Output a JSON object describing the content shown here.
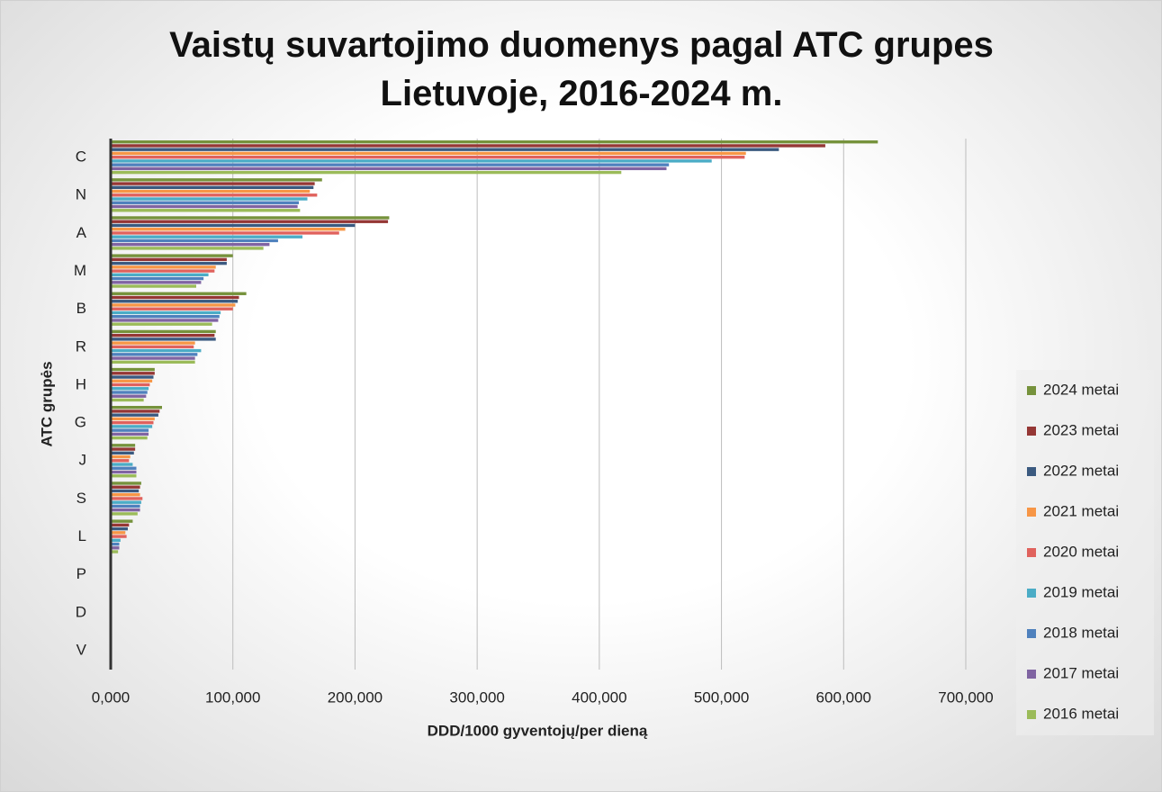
{
  "chart_data": {
    "type": "hbar",
    "title": "Vaistų suvartojimo duomenys pagal ATC grupes Lietuvoje, 2016-2024 m.",
    "x_label": "DDD/1000 gyventojų/per dieną",
    "y_label": "ATC grupės",
    "categories": [
      "C",
      "N",
      "A",
      "M",
      "B",
      "R",
      "H",
      "G",
      "J",
      "S",
      "L",
      "P",
      "D",
      "V"
    ],
    "series": [
      {
        "name": "2024 metai",
        "color": "#76923c",
        "values": [
          628000,
          173000,
          228000,
          100000,
          111000,
          86000,
          36000,
          42000,
          20000,
          25000,
          18000,
          0,
          0,
          0
        ]
      },
      {
        "name": "2023 metai",
        "color": "#953735",
        "values": [
          585000,
          167000,
          227000,
          95000,
          105000,
          85000,
          36000,
          40000,
          20000,
          24000,
          15000,
          0,
          0,
          0
        ]
      },
      {
        "name": "2022 metai",
        "color": "#3b5a80",
        "values": [
          547000,
          166000,
          200000,
          95000,
          104000,
          86000,
          35000,
          39000,
          19000,
          23000,
          14000,
          0,
          0,
          0
        ]
      },
      {
        "name": "2021 metai",
        "color": "#f79646",
        "values": [
          520000,
          163000,
          192000,
          86000,
          102000,
          69000,
          34000,
          36000,
          16000,
          24000,
          12000,
          0,
          0,
          0
        ]
      },
      {
        "name": "2020 metai",
        "color": "#e0625d",
        "values": [
          519000,
          169000,
          187000,
          85000,
          100000,
          68000,
          32000,
          35000,
          15000,
          26000,
          13000,
          0,
          0,
          0
        ]
      },
      {
        "name": "2019 metai",
        "color": "#4bacc6",
        "values": [
          492000,
          161000,
          157000,
          80000,
          90000,
          74000,
          31000,
          34000,
          18000,
          25000,
          8000,
          0,
          0,
          0
        ]
      },
      {
        "name": "2018 metai",
        "color": "#4f81bd",
        "values": [
          457000,
          154000,
          137000,
          76000,
          89000,
          71000,
          30000,
          31000,
          21000,
          24000,
          7000,
          0,
          0,
          0
        ]
      },
      {
        "name": "2017 metai",
        "color": "#8064a2",
        "values": [
          455000,
          153000,
          130000,
          74000,
          88000,
          69000,
          29000,
          31000,
          21000,
          24000,
          7000,
          0,
          0,
          0
        ]
      },
      {
        "name": "2016 metai",
        "color": "#9bbb59",
        "values": [
          418000,
          155000,
          125000,
          70000,
          83000,
          69000,
          27000,
          30000,
          21000,
          22000,
          6000,
          0,
          0,
          0
        ]
      }
    ],
    "xlim": [
      0,
      700000
    ],
    "xticks": [
      {
        "value": 0,
        "label": "0,000"
      },
      {
        "value": 100000,
        "label": "100,000"
      },
      {
        "value": 200000,
        "label": "200,000"
      },
      {
        "value": 300000,
        "label": "300,000"
      },
      {
        "value": 400000,
        "label": "400,000"
      },
      {
        "value": 500000,
        "label": "500,000"
      },
      {
        "value": 600000,
        "label": "600,000"
      },
      {
        "value": 700000,
        "label": "700,000"
      }
    ],
    "grid": true,
    "legend": "right"
  }
}
